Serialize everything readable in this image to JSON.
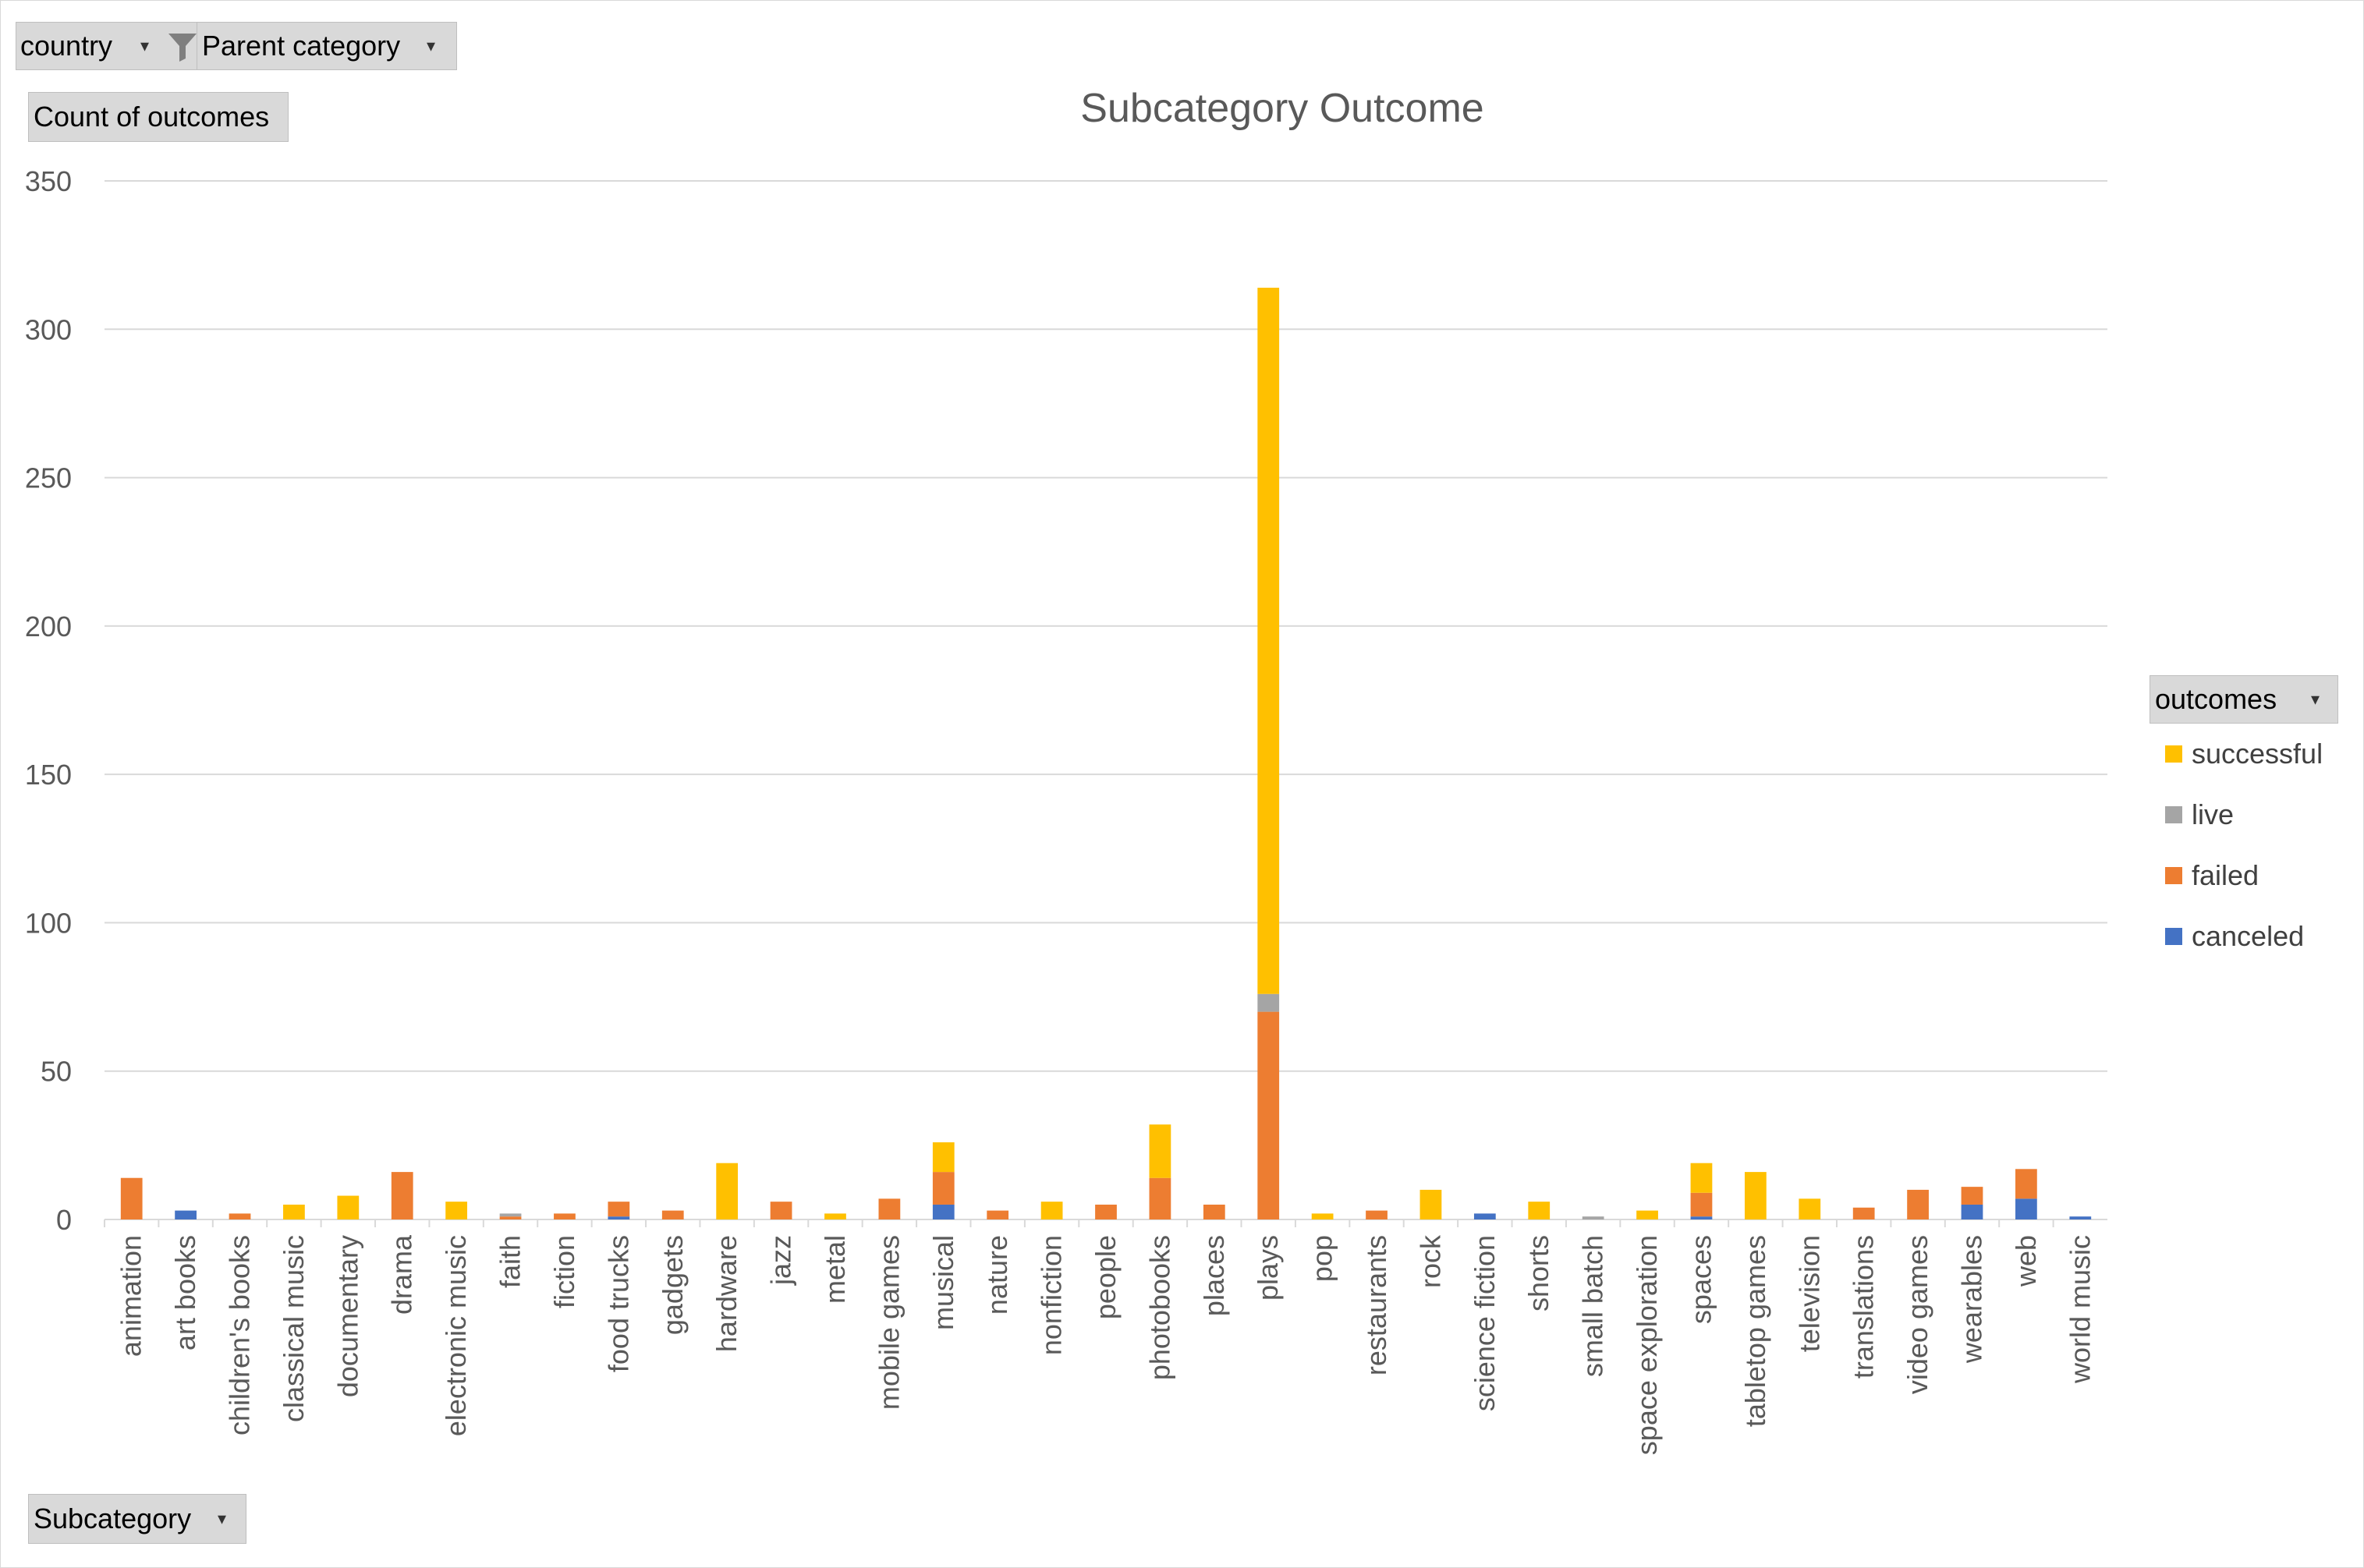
{
  "pivot_fields": {
    "filter_country": "country",
    "filter_parent_category": "Parent category",
    "values_field": "Count of outcomes",
    "axis_field": "Subcategory",
    "legend_field": "outcomes"
  },
  "colors": {
    "successful": "#FFC000",
    "live": "#A5A5A5",
    "failed": "#ED7D31",
    "canceled": "#4472C4",
    "gridline": "#D9D9D9",
    "axis_text": "#595959"
  },
  "chart_data": {
    "type": "bar",
    "stacked": true,
    "title": "Subcategory Outcome",
    "xlabel": "",
    "ylabel": "",
    "ylim": [
      0,
      350
    ],
    "yticks": [
      0,
      50,
      100,
      150,
      200,
      250,
      300,
      350
    ],
    "grid": true,
    "legend_position": "right",
    "categories": [
      "animation",
      "art books",
      "children's books",
      "classical music",
      "documentary",
      "drama",
      "electronic music",
      "faith",
      "fiction",
      "food trucks",
      "gadgets",
      "hardware",
      "jazz",
      "metal",
      "mobile games",
      "musical",
      "nature",
      "nonfiction",
      "people",
      "photobooks",
      "places",
      "plays",
      "pop",
      "restaurants",
      "rock",
      "science fiction",
      "shorts",
      "small batch",
      "space exploration",
      "spaces",
      "tabletop games",
      "television",
      "translations",
      "video games",
      "wearables",
      "web",
      "world music"
    ],
    "series": [
      {
        "name": "canceled",
        "color": "#4472C4",
        "values": [
          0,
          3,
          0,
          0,
          0,
          0,
          0,
          0,
          0,
          1,
          0,
          0,
          0,
          0,
          0,
          5,
          0,
          0,
          0,
          0,
          0,
          0,
          0,
          0,
          0,
          2,
          0,
          0,
          0,
          1,
          0,
          0,
          0,
          0,
          5,
          7,
          1
        ]
      },
      {
        "name": "failed",
        "color": "#ED7D31",
        "values": [
          14,
          0,
          2,
          0,
          0,
          16,
          0,
          1,
          2,
          5,
          3,
          0,
          6,
          0,
          7,
          11,
          3,
          0,
          5,
          14,
          5,
          70,
          0,
          3,
          0,
          0,
          0,
          0,
          0,
          8,
          0,
          0,
          4,
          10,
          6,
          10,
          0
        ]
      },
      {
        "name": "live",
        "color": "#A5A5A5",
        "values": [
          0,
          0,
          0,
          0,
          0,
          0,
          0,
          1,
          0,
          0,
          0,
          0,
          0,
          0,
          0,
          0,
          0,
          0,
          0,
          0,
          0,
          6,
          0,
          0,
          0,
          0,
          0,
          1,
          0,
          0,
          0,
          0,
          0,
          0,
          0,
          0,
          0
        ]
      },
      {
        "name": "successful",
        "color": "#FFC000",
        "values": [
          0,
          0,
          0,
          5,
          8,
          0,
          6,
          0,
          0,
          0,
          0,
          19,
          0,
          2,
          0,
          10,
          0,
          6,
          0,
          18,
          0,
          238,
          2,
          0,
          10,
          0,
          6,
          0,
          3,
          10,
          16,
          7,
          0,
          0,
          0,
          0,
          0
        ]
      }
    ]
  }
}
